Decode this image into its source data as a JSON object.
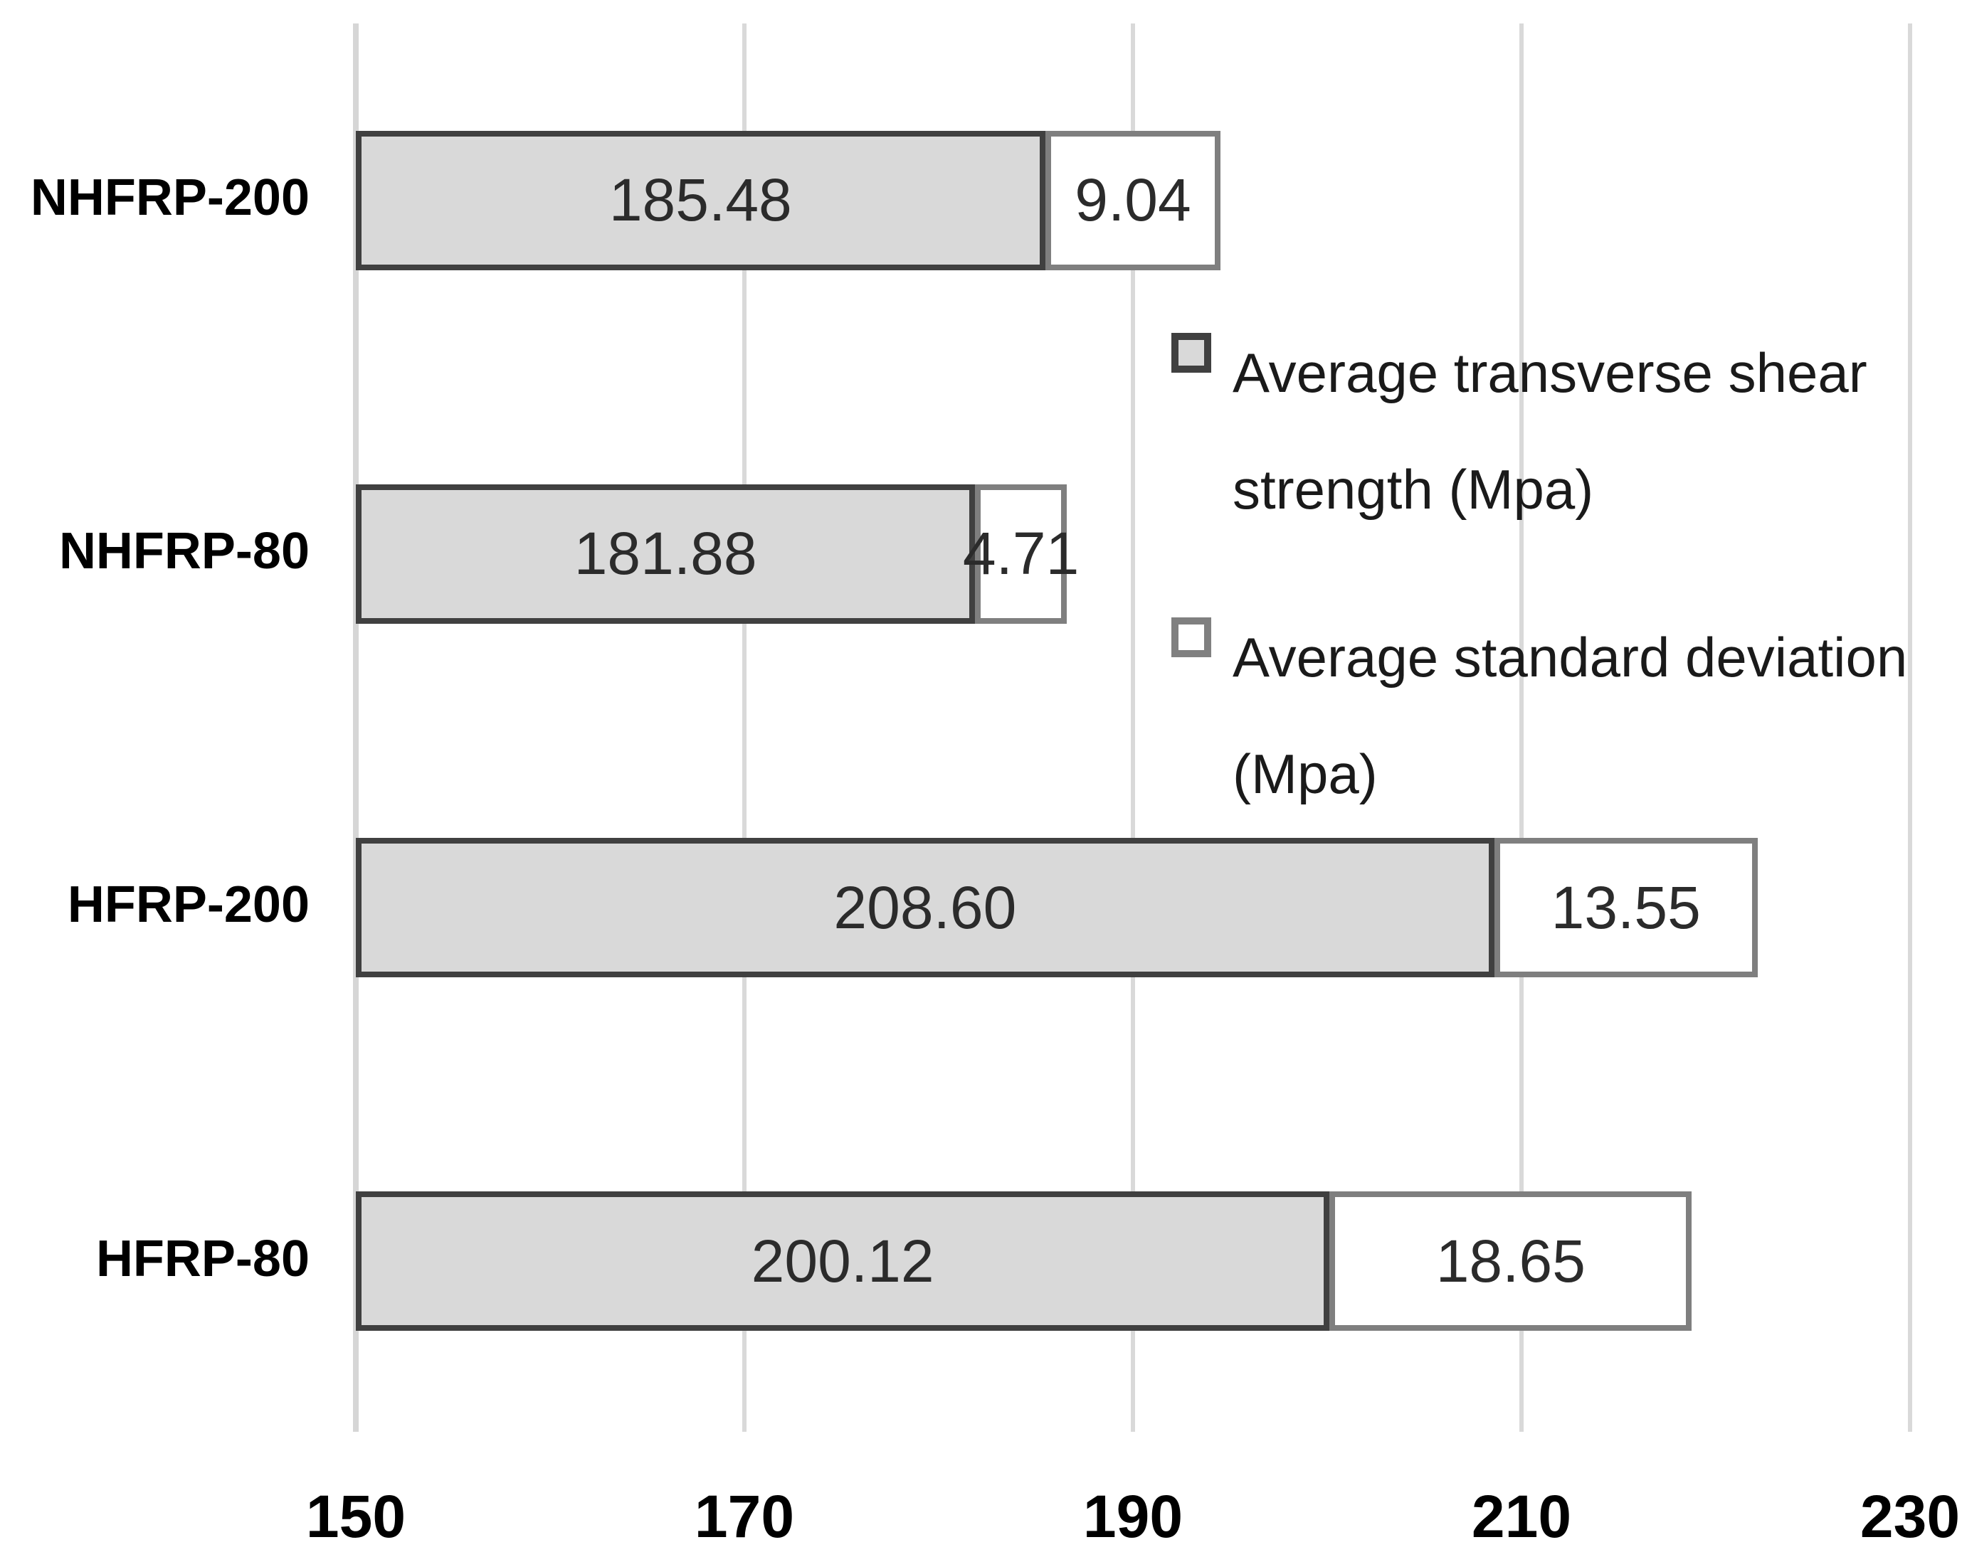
{
  "chart_data": {
    "type": "bar",
    "orientation": "horizontal",
    "stacked": true,
    "grid": true,
    "categories": [
      "NHFRP-200",
      "NHFRP-80",
      "HFRP-200",
      "HFRP-80"
    ],
    "series": [
      {
        "name": "Average transverse shear strength (Mpa)",
        "values": [
          185.48,
          181.88,
          208.6,
          200.12
        ],
        "labels": [
          "185.48",
          "181.88",
          "208.60",
          "200.12"
        ],
        "fill": "#d9d9d9",
        "border": "#404040"
      },
      {
        "name": "Average standard deviation (Mpa)",
        "values": [
          9.04,
          4.71,
          13.55,
          18.65
        ],
        "labels": [
          "9.04",
          "4.71",
          "13.55",
          "18.65"
        ],
        "fill": "#ffffff",
        "border": "#7f7f7f"
      }
    ],
    "x_axis": {
      "min": 150,
      "max": 230,
      "ticks": [
        150,
        170,
        190,
        210,
        230
      ],
      "tick_labels": [
        "150",
        "170",
        "190",
        "210",
        "230"
      ]
    },
    "legend": {
      "position": "right-upper",
      "items": [
        {
          "label": "Average transverse shear strength (Mpa)",
          "swatch": "gray"
        },
        {
          "label": "Average standard deviation (Mpa)",
          "swatch": "white"
        }
      ]
    },
    "colors": {
      "gridline": "#d9d9d9",
      "bar_fill_gray": "#d9d9d9",
      "bar_border_dark": "#404040",
      "bar_fill_white": "#ffffff",
      "bar_border_gray": "#7f7f7f",
      "text": "#000000",
      "value_text": "#2b2b2b"
    }
  }
}
